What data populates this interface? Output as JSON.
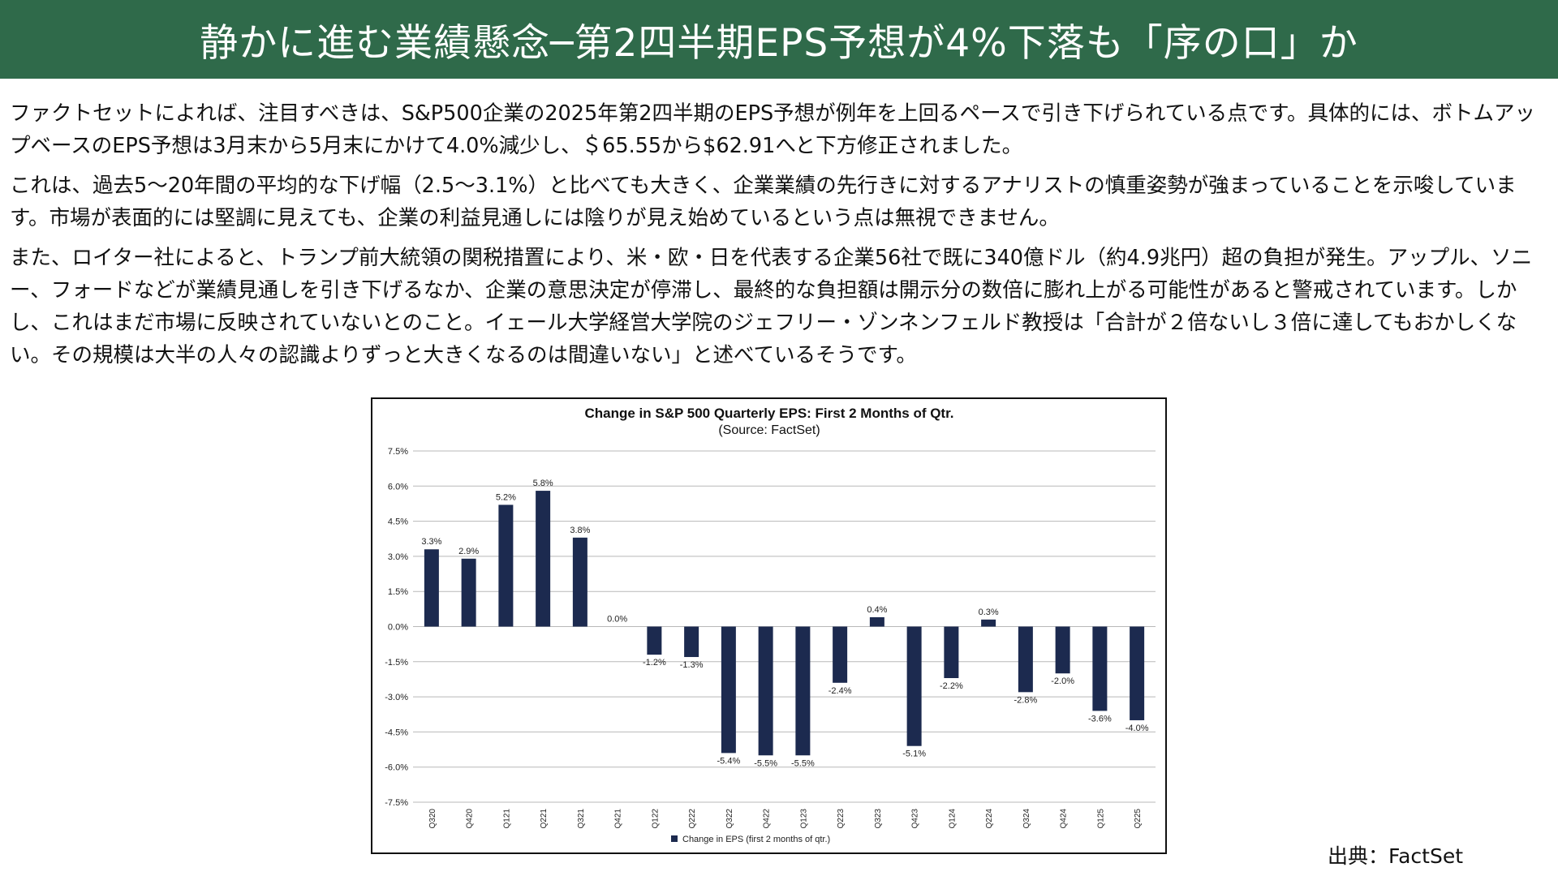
{
  "header": {
    "title": "静かに進む業績懸念─第2四半期EPS予想が4%下落も「序の口」か"
  },
  "body": {
    "paragraphs": [
      "ファクトセットによれば、注目すべきは、S&P500企業の2025年第2四半期のEPS予想が例年を上回るペースで引き下げられている点です。具体的には、ボトムアップベースのEPS予想は3月末から5月末にかけて4.0%減少し、＄65.55から$62.91へと下方修正されました。",
      "これは、過去5～20年間の平均的な下げ幅（2.5～3.1%）と比べても大きく、企業業績の先行きに対するアナリストの慎重姿勢が強まっていることを示唆しています。市場が表面的には堅調に見えても、企業の利益見通しには陰りが見え始めているという点は無視できません。",
      "また、ロイター社によると、トランプ前大統領の関税措置により、米・欧・日を代表する企業56社で既に340億ドル（約4.9兆円）超の負担が発生。アップル、ソニー、フォードなどが業績見通しを引き下げるなか、企業の意思決定が停滞し、最終的な負担額は開示分の数倍に膨れ上がる可能性があると警戒されています。しかし、これはまだ市場に反映されていないとのこと。イェール大学経営大学院のジェフリー・ゾンネンフェルド教授は「合計が２倍ないし３倍に達してもおかしくない。その規模は大半の人々の認識よりずっと大きくなるのは間違いない」と述べているそうです。"
    ]
  },
  "source_label": "出典：FactSet",
  "colors": {
    "banner": "#2f6a4a",
    "bar": "#1c2a4f"
  },
  "chart_data": {
    "type": "bar",
    "title": "Change in S&P 500 Quarterly  EPS: First 2 Months of Qtr.",
    "subtitle": "(Source: FactSet)",
    "categories": [
      "Q320",
      "Q420",
      "Q121",
      "Q221",
      "Q321",
      "Q421",
      "Q122",
      "Q222",
      "Q322",
      "Q422",
      "Q123",
      "Q223",
      "Q323",
      "Q423",
      "Q124",
      "Q224",
      "Q324",
      "Q424",
      "Q125",
      "Q225"
    ],
    "series": [
      {
        "name": "Change in EPS (first 2 months of qtr.)",
        "values": [
          3.3,
          2.9,
          5.2,
          5.8,
          3.8,
          0.0,
          -1.2,
          -1.3,
          -5.4,
          -5.5,
          -5.5,
          -2.4,
          0.4,
          -5.1,
          -2.2,
          0.3,
          -2.8,
          -2.0,
          -3.6,
          -4.0
        ],
        "labels": [
          "3.3%",
          "2.9%",
          "5.2%",
          "5.8%",
          "3.8%",
          "0.0%",
          "-1.2%",
          "-1.3%",
          "-5.4%",
          "-5.5%",
          "-5.5%",
          "-2.4%",
          "0.4%",
          "-5.1%",
          "-2.2%",
          "0.3%",
          "-2.8%",
          "-2.0%",
          "-3.6%",
          "-4.0%"
        ]
      }
    ],
    "ylim": [
      -7.5,
      7.5
    ],
    "yticks": [
      7.5,
      6.0,
      4.5,
      3.0,
      1.5,
      0.0,
      -1.5,
      -3.0,
      -4.5,
      -6.0,
      -7.5
    ],
    "ytick_labels": [
      "7.5%",
      "6.0%",
      "4.5%",
      "3.0%",
      "1.5%",
      "0.0%",
      "-1.5%",
      "-3.0%",
      "-4.5%",
      "-6.0%",
      "-7.5%"
    ],
    "grid": true,
    "legend": "bottom"
  }
}
